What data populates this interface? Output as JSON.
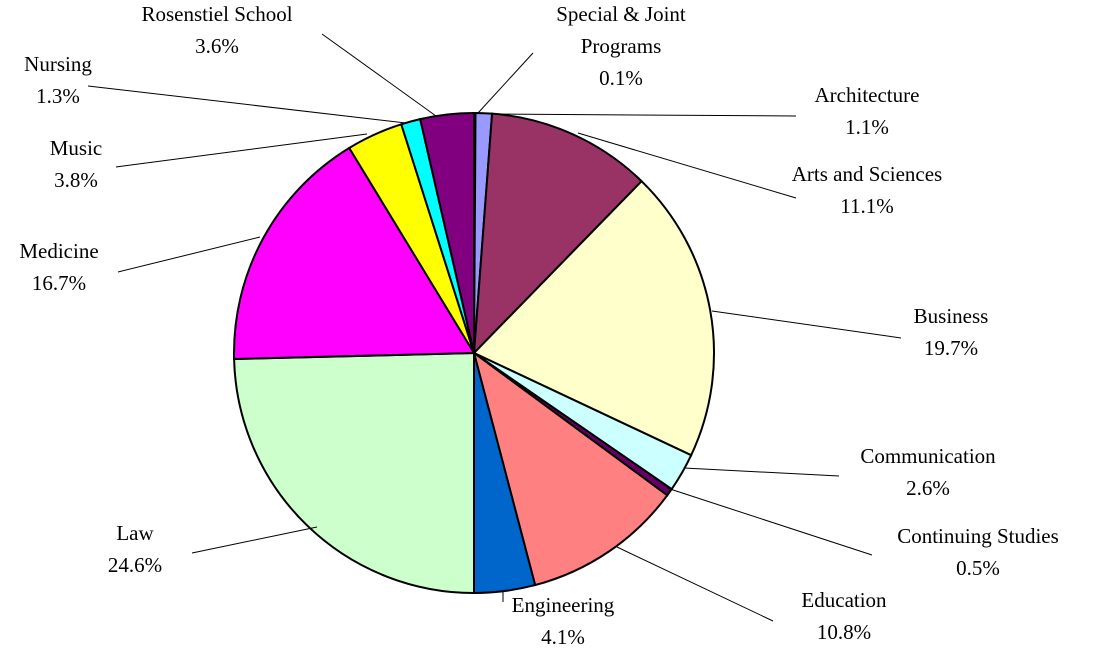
{
  "chart_data": {
    "type": "pie",
    "start_angle_deg": 0,
    "direction": "clockwise",
    "slices": [
      {
        "label": "Special & Joint Programs",
        "label_lines": [
          "Special & Joint",
          "Programs"
        ],
        "value": 0.1,
        "value_text": "0.1%",
        "color": "#dcdcff"
      },
      {
        "label": "Architecture",
        "label_lines": [
          "Architecture"
        ],
        "value": 1.1,
        "value_text": "1.1%",
        "color": "#9999ff"
      },
      {
        "label": "Arts and Sciences",
        "label_lines": [
          "Arts and Sciences"
        ],
        "value": 11.1,
        "value_text": "11.1%",
        "color": "#993366"
      },
      {
        "label": "Business",
        "label_lines": [
          "Business"
        ],
        "value": 19.7,
        "value_text": "19.7%",
        "color": "#ffffcc"
      },
      {
        "label": "Communication",
        "label_lines": [
          "Communication"
        ],
        "value": 2.6,
        "value_text": "2.6%",
        "color": "#ccffff"
      },
      {
        "label": "Continuing Studies",
        "label_lines": [
          "Continuing Studies"
        ],
        "value": 0.5,
        "value_text": "0.5%",
        "color": "#660066"
      },
      {
        "label": "Education",
        "label_lines": [
          "Education"
        ],
        "value": 10.8,
        "value_text": "10.8%",
        "color": "#ff8080"
      },
      {
        "label": "Engineering",
        "label_lines": [
          "Engineering"
        ],
        "value": 4.1,
        "value_text": "4.1%",
        "color": "#0066cc"
      },
      {
        "label": "Law",
        "label_lines": [
          "Law"
        ],
        "value": 24.6,
        "value_text": "24.6%",
        "color": "#ccffcc"
      },
      {
        "label": "Medicine",
        "label_lines": [
          "Medicine"
        ],
        "value": 16.7,
        "value_text": "16.7%",
        "color": "#ff00ff"
      },
      {
        "label": "Music",
        "label_lines": [
          "Music"
        ],
        "value": 3.8,
        "value_text": "3.8%",
        "color": "#ffff00"
      },
      {
        "label": "Nursing",
        "label_lines": [
          "Nursing"
        ],
        "value": 1.3,
        "value_text": "1.3%",
        "color": "#00ffff"
      },
      {
        "label": "Rosenstiel School",
        "label_lines": [
          "Rosenstiel School"
        ],
        "value": 3.6,
        "value_text": "3.6%",
        "color": "#800080"
      }
    ],
    "legend": "none",
    "data_labels": "outside with leader lines"
  }
}
